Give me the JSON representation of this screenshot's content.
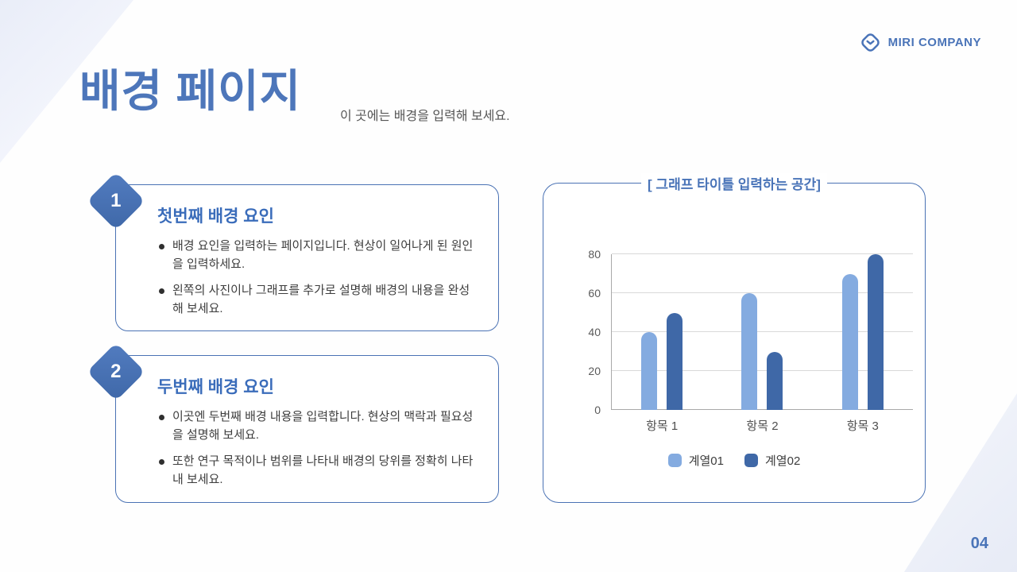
{
  "brand": {
    "name": "MIRI COMPANY"
  },
  "header": {
    "title": "배경 페이지",
    "subtitle": "이 곳에는 배경을 입력해 보세요."
  },
  "cards": [
    {
      "number": "1",
      "heading": "첫번째 배경 요인",
      "bullets": [
        "배경 요인을 입력하는 페이지입니다. 현상이 일어나게 된 원인을 입력하세요.",
        "왼쪽의 사진이나 그래프를 추가로 설명해 배경의 내용을 완성해 보세요."
      ]
    },
    {
      "number": "2",
      "heading": "두번째 배경 요인",
      "bullets": [
        "이곳엔 두번째 배경 내용을 입력합니다. 현상의 맥락과 필요성을 설명해 보세요.",
        "또한 연구 목적이나 범위를 나타내 배경의 당위를 정확히 나타내 보세요."
      ]
    }
  ],
  "chart_data": {
    "type": "bar",
    "title": "[ 그래프 타이틀 입력하는 공간]",
    "categories": [
      "항목 1",
      "항목 2",
      "항목 3"
    ],
    "series": [
      {
        "name": "계열01",
        "color": "#84abe0",
        "values": [
          40,
          60,
          70
        ]
      },
      {
        "name": "계열02",
        "color": "#3f68a7",
        "values": [
          50,
          30,
          80
        ]
      }
    ],
    "ylim": [
      0,
      80
    ],
    "yticks": [
      0,
      20,
      40,
      60,
      80
    ],
    "grid": true,
    "legend_position": "bottom"
  },
  "footer": {
    "page_number": "04"
  },
  "colors": {
    "primary_blue": "#4a74b8",
    "heading_blue": "#3a6cba",
    "series1": "#84abe0",
    "series2": "#3f68a7",
    "gridline": "#d9d9d9",
    "axis": "#a9a9a9"
  }
}
